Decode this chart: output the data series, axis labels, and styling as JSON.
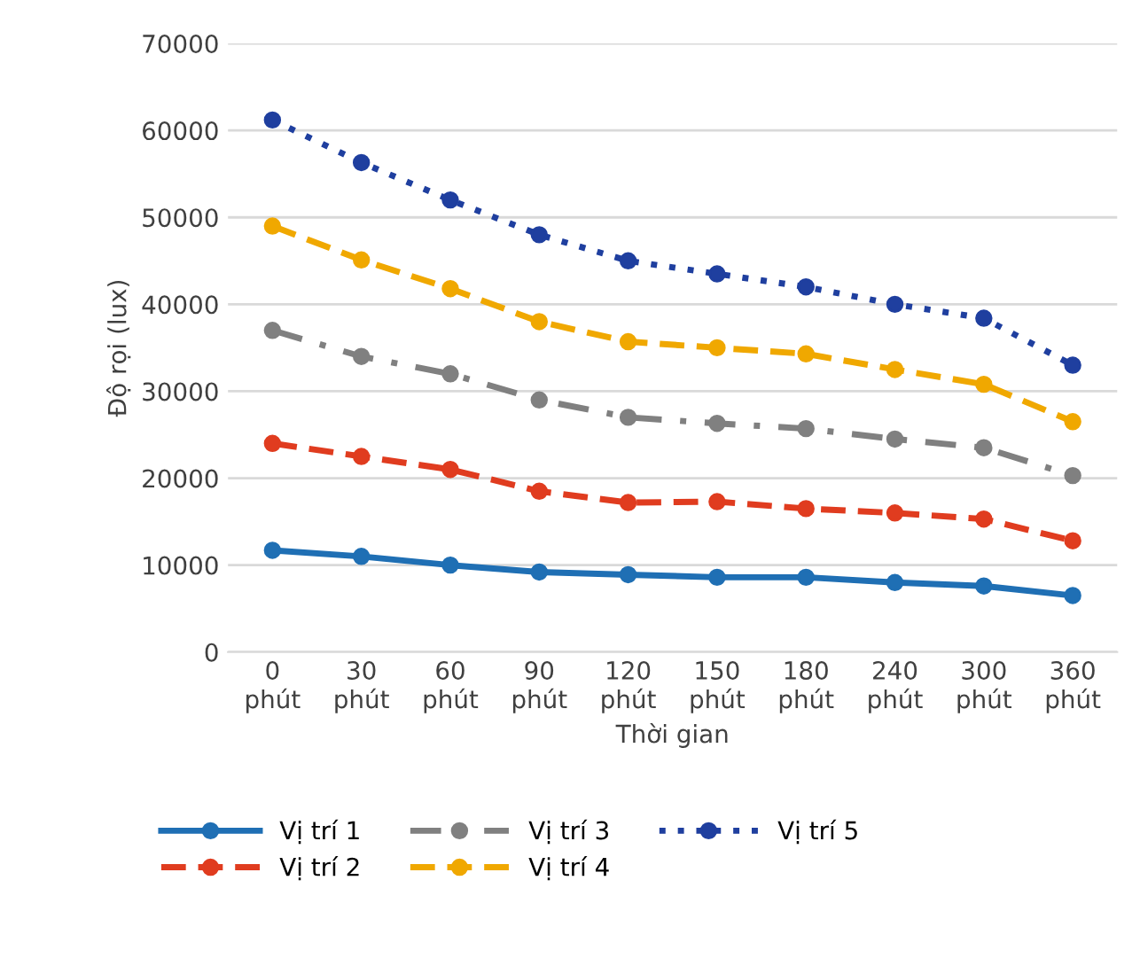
{
  "chart_data": {
    "type": "line",
    "xlabel": "Thời gian",
    "ylabel": "Độ rọi (lux)",
    "categories": [
      "0\nphút",
      "30\nphút",
      "60\nphút",
      "90\nphút",
      "120\nphút",
      "150\nphút",
      "180\nphút",
      "240\nphút",
      "300\nphút",
      "360\nphút"
    ],
    "series": [
      {
        "name": "Vị trí 1",
        "color": "#1f6fb4",
        "line_style": "solid",
        "values": [
          11700,
          11000,
          10000,
          9200,
          8900,
          8600,
          8600,
          8000,
          7600,
          6500
        ]
      },
      {
        "name": "Vị trí 2",
        "color": "#e03c1f",
        "line_style": "dashed",
        "values": [
          24000,
          22500,
          21000,
          18500,
          17200,
          17300,
          16500,
          16000,
          15300,
          12800
        ]
      },
      {
        "name": "Vị trí 3",
        "color": "#808080",
        "line_style": "dashdot",
        "values": [
          37000,
          34000,
          32000,
          29000,
          27000,
          26300,
          25700,
          24500,
          23500,
          20300
        ]
      },
      {
        "name": "Vị trí 4",
        "color": "#f0a800",
        "line_style": "dashed",
        "values": [
          49000,
          45100,
          41800,
          38000,
          35700,
          35000,
          34300,
          32500,
          30800,
          26500
        ]
      },
      {
        "name": "Vị trí 5",
        "color": "#1f3f9f",
        "line_style": "dotted",
        "values": [
          61200,
          56300,
          52000,
          48000,
          45000,
          43500,
          42000,
          40000,
          38400,
          33000
        ]
      }
    ],
    "marker": "circle",
    "ylim": [
      0,
      70000
    ],
    "yticks": [
      0,
      10000,
      20000,
      30000,
      40000,
      50000,
      60000,
      70000
    ],
    "grid": "y",
    "legend": "bottom"
  }
}
